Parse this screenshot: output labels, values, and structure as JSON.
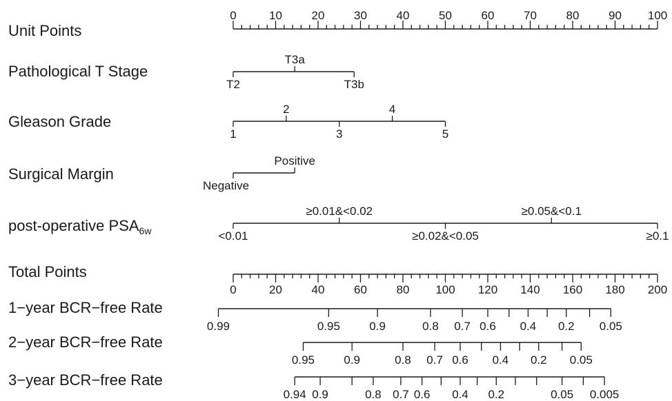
{
  "chart_data": {
    "type": "nomogram",
    "variables": [
      {
        "label": "Unit Points",
        "ticks": [
          "0",
          "10",
          "20",
          "30",
          "40",
          "50",
          "60",
          "70",
          "80",
          "90",
          "100"
        ],
        "values": [
          0,
          10,
          20,
          30,
          40,
          50,
          60,
          70,
          80,
          90,
          100
        ],
        "minor_step": 2
      },
      {
        "label": "Pathological T Stage",
        "levels": [
          {
            "label": "T2",
            "points": 0,
            "text_side": "below"
          },
          {
            "label": "T3a",
            "points": 14.5,
            "text_side": "above"
          },
          {
            "label": "T3b",
            "points": 28.5,
            "text_side": "below"
          }
        ]
      },
      {
        "label": "Gleason Grade",
        "levels": [
          {
            "label": "1",
            "points": 0,
            "text_side": "below"
          },
          {
            "label": "2",
            "points": 12.5,
            "text_side": "above"
          },
          {
            "label": "3",
            "points": 25,
            "text_side": "below"
          },
          {
            "label": "4",
            "points": 37.5,
            "text_side": "above"
          },
          {
            "label": "5",
            "points": 50,
            "text_side": "below"
          }
        ]
      },
      {
        "label": "Surgical Margin",
        "levels": [
          {
            "label": "Negative",
            "points": 0,
            "text_side": "below"
          },
          {
            "label": "Positive",
            "points": 14.5,
            "text_side": "above"
          }
        ]
      },
      {
        "label": "post-operative PSA",
        "label_subscript": "6w",
        "levels": [
          {
            "label": "<0.01",
            "points": 0,
            "text_side": "below"
          },
          {
            "label": "≥0.01&<0.02",
            "points": 25,
            "text_side": "above"
          },
          {
            "label": "≥0.02&<0.05",
            "points": 50,
            "text_side": "below"
          },
          {
            "label": "≥0.05&<0.1",
            "points": 75,
            "text_side": "above"
          },
          {
            "label": "≥0.1",
            "points": 100,
            "text_side": "below"
          }
        ]
      }
    ],
    "total_points": {
      "label": "Total Points",
      "ticks": [
        "0",
        "20",
        "40",
        "60",
        "80",
        "100",
        "120",
        "140",
        "160",
        "180",
        "200"
      ],
      "values": [
        0,
        20,
        40,
        60,
        80,
        100,
        120,
        140,
        160,
        180,
        200
      ],
      "minor_step": 4
    },
    "outcomes": [
      {
        "label": "1−year BCR−free Rate",
        "range_total_points": [
          -7,
          178
        ],
        "ticks": [
          {
            "label": "0.99",
            "total_points": -7
          },
          {
            "label": "0.95",
            "total_points": 45
          },
          {
            "label": "0.9",
            "total_points": 68
          },
          {
            "label": "0.8",
            "total_points": 93
          },
          {
            "label": "0.7",
            "total_points": 108
          },
          {
            "label": "0.6",
            "total_points": 120
          },
          {
            "label": "",
            "total_points": 130
          },
          {
            "label": "0.4",
            "total_points": 139
          },
          {
            "label": "",
            "total_points": 148
          },
          {
            "label": "0.2",
            "total_points": 157
          },
          {
            "label": "",
            "total_points": 168
          },
          {
            "label": "0.05",
            "total_points": 178
          }
        ]
      },
      {
        "label": "2−year BCR−free Rate",
        "range_total_points": [
          33,
          164
        ],
        "ticks": [
          {
            "label": "0.95",
            "total_points": 33
          },
          {
            "label": "0.9",
            "total_points": 56
          },
          {
            "label": "0.8",
            "total_points": 80
          },
          {
            "label": "0.7",
            "total_points": 95
          },
          {
            "label": "0.6",
            "total_points": 107
          },
          {
            "label": "",
            "total_points": 117
          },
          {
            "label": "0.4",
            "total_points": 126
          },
          {
            "label": "",
            "total_points": 135
          },
          {
            "label": "0.2",
            "total_points": 144
          },
          {
            "label": "",
            "total_points": 155
          },
          {
            "label": "0.05",
            "total_points": 164
          }
        ]
      },
      {
        "label": "3−year BCR−free Rate",
        "range_total_points": [
          29,
          175
        ],
        "ticks": [
          {
            "label": "0.94",
            "total_points": 29
          },
          {
            "label": "0.9",
            "total_points": 41
          },
          {
            "label": "",
            "total_points": 56
          },
          {
            "label": "0.8",
            "total_points": 66
          },
          {
            "label": "0.7",
            "total_points": 79
          },
          {
            "label": "0.6",
            "total_points": 89
          },
          {
            "label": "",
            "total_points": 98
          },
          {
            "label": "0.4",
            "total_points": 107
          },
          {
            "label": "",
            "total_points": 115
          },
          {
            "label": "0.2",
            "total_points": 124
          },
          {
            "label": "",
            "total_points": 133
          },
          {
            "label": "",
            "total_points": 143
          },
          {
            "label": "0.05",
            "total_points": 155
          },
          {
            "label": "",
            "total_points": 165
          },
          {
            "label": "0.005",
            "total_points": 175
          }
        ]
      }
    ]
  }
}
